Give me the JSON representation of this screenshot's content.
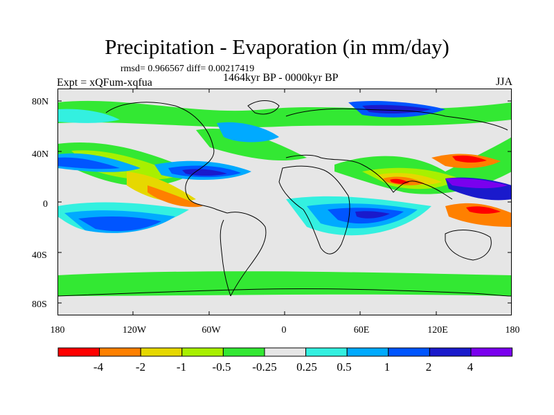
{
  "title": "Precipitation - Evaporation (in mm/day)",
  "stats_text": "rmsd= 0.966567  diff= 0.00217419",
  "expt_label": "Expt = xQFum-xqfua",
  "period_label": "1464kyr BP - 0000kyr BP",
  "season_label": "JJA",
  "y_ticks": [
    "80N",
    "40N",
    "0",
    "40S",
    "80S"
  ],
  "x_ticks": [
    "180",
    "120W",
    "60W",
    "0",
    "60E",
    "120E",
    "180"
  ],
  "colorbar": {
    "labels": [
      "-4",
      "-2",
      "-1",
      "-0.5",
      "-0.25",
      "0.25",
      "0.5",
      "1",
      "2",
      "4"
    ],
    "colors": [
      "#ff0000",
      "#ff8000",
      "#e6d800",
      "#a8f000",
      "#33e833",
      "#e6e6e6",
      "#33f0e0",
      "#00aaff",
      "#0055ff",
      "#1a1acc",
      "#7a00ee"
    ]
  },
  "colors": {
    "neutral": "#e6e6e6",
    "coast": "#000000"
  }
}
